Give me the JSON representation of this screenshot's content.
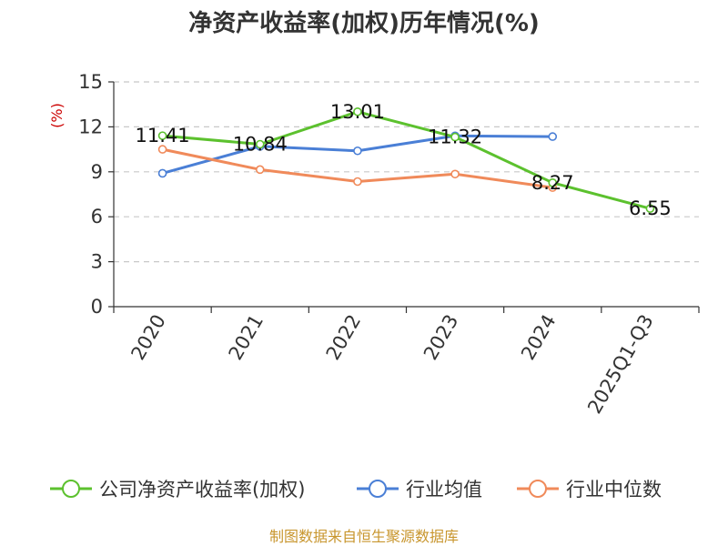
{
  "chart_data": {
    "type": "line",
    "title": "净资产收益率(加权)历年情况(%)",
    "ylabel": "(%)",
    "xlabel": "",
    "categories": [
      "2020",
      "2021",
      "2022",
      "2023",
      "2024",
      "2025Q1-Q3"
    ],
    "ylim": [
      0,
      15
    ],
    "yticks": [
      0,
      3,
      6,
      9,
      12,
      15
    ],
    "grid": "horizontal-dashed",
    "legend_position": "bottom",
    "series": [
      {
        "name": "公司净资产收益率(加权)",
        "color": "#5cc12e",
        "values": [
          11.41,
          10.84,
          13.01,
          11.32,
          8.27,
          6.55
        ],
        "labels": [
          "11.41",
          "10.84",
          "13.01",
          "11.32",
          "8.27",
          "6.55"
        ]
      },
      {
        "name": "行业均值",
        "color": "#4a7fd6",
        "values": [
          8.9,
          10.7,
          10.4,
          11.4,
          11.35,
          null
        ]
      },
      {
        "name": "行业中位数",
        "color": "#f08a5a",
        "values": [
          10.5,
          9.15,
          8.35,
          8.85,
          7.95,
          null
        ]
      }
    ]
  },
  "footer": {
    "source": "制图数据来自恒生聚源数据库"
  }
}
